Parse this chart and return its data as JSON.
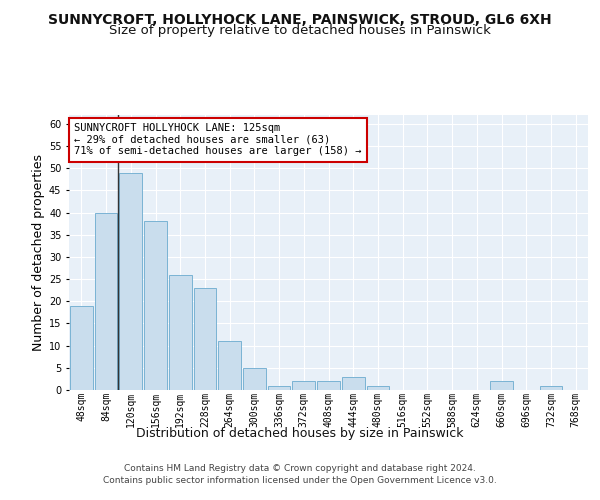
{
  "title": "SUNNYCROFT, HOLLYHOCK LANE, PAINSWICK, STROUD, GL6 6XH",
  "subtitle": "Size of property relative to detached houses in Painswick",
  "xlabel": "Distribution of detached houses by size in Painswick",
  "ylabel": "Number of detached properties",
  "bin_labels": [
    "48sqm",
    "84sqm",
    "120sqm",
    "156sqm",
    "192sqm",
    "228sqm",
    "264sqm",
    "300sqm",
    "336sqm",
    "372sqm",
    "408sqm",
    "444sqm",
    "480sqm",
    "516sqm",
    "552sqm",
    "588sqm",
    "624sqm",
    "660sqm",
    "696sqm",
    "732sqm",
    "768sqm"
  ],
  "bar_values": [
    19,
    40,
    49,
    38,
    26,
    23,
    11,
    5,
    1,
    2,
    2,
    3,
    1,
    0,
    0,
    0,
    0,
    2,
    0,
    1,
    0
  ],
  "bar_color": "#c9dded",
  "bar_edge_color": "#7ab3d4",
  "property_line_x": 2,
  "annotation_text": "SUNNYCROFT HOLLYHOCK LANE: 125sqm\n← 29% of detached houses are smaller (63)\n71% of semi-detached houses are larger (158) →",
  "annotation_box_color": "#ffffff",
  "annotation_box_edge_color": "#cc0000",
  "vline_color": "#333333",
  "ylim": [
    0,
    62
  ],
  "yticks": [
    0,
    5,
    10,
    15,
    20,
    25,
    30,
    35,
    40,
    45,
    50,
    55,
    60
  ],
  "footer_line1": "Contains HM Land Registry data © Crown copyright and database right 2024.",
  "footer_line2": "Contains public sector information licensed under the Open Government Licence v3.0.",
  "bg_color": "#ffffff",
  "plot_bg_color": "#e8f0f8",
  "grid_color": "#ffffff",
  "title_fontsize": 10,
  "subtitle_fontsize": 9.5,
  "axis_label_fontsize": 9,
  "tick_fontsize": 7,
  "annotation_fontsize": 7.5,
  "footer_fontsize": 6.5
}
